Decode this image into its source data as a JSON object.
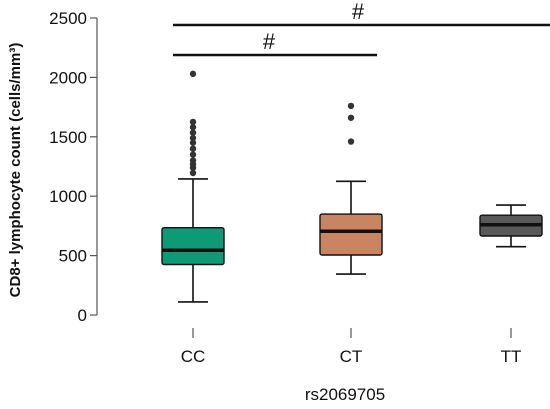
{
  "chart_data": {
    "type": "box",
    "title": "",
    "xlabel": "rs2069705",
    "ylabel": "CD8+ lymphocyte count (cells/mm³)",
    "ylim": [
      0,
      2500
    ],
    "yticks": [
      0,
      500,
      1000,
      1500,
      2000,
      2500
    ],
    "categories": [
      "CC",
      "CT",
      "TT"
    ],
    "colors": [
      "#0e9a77",
      "#c98561",
      "#595959"
    ],
    "boxes": [
      {
        "category": "CC",
        "min": 110,
        "q1": 425,
        "median": 545,
        "q3": 735,
        "max": 1145,
        "outliers": [
          1195,
          1240,
          1270,
          1300,
          1350,
          1400,
          1450,
          1490,
          1535,
          1580,
          1625,
          2030
        ]
      },
      {
        "category": "CT",
        "min": 345,
        "q1": 505,
        "median": 705,
        "q3": 850,
        "max": 1125,
        "outliers": [
          1460,
          1660,
          1760
        ]
      },
      {
        "category": "TT",
        "min": 575,
        "q1": 665,
        "median": 760,
        "q3": 840,
        "max": 925,
        "outliers": []
      }
    ],
    "significance": [
      {
        "from": "CC",
        "to": "TT",
        "label": "#"
      },
      {
        "from": "CC",
        "to": "CT",
        "label": "#"
      }
    ]
  }
}
